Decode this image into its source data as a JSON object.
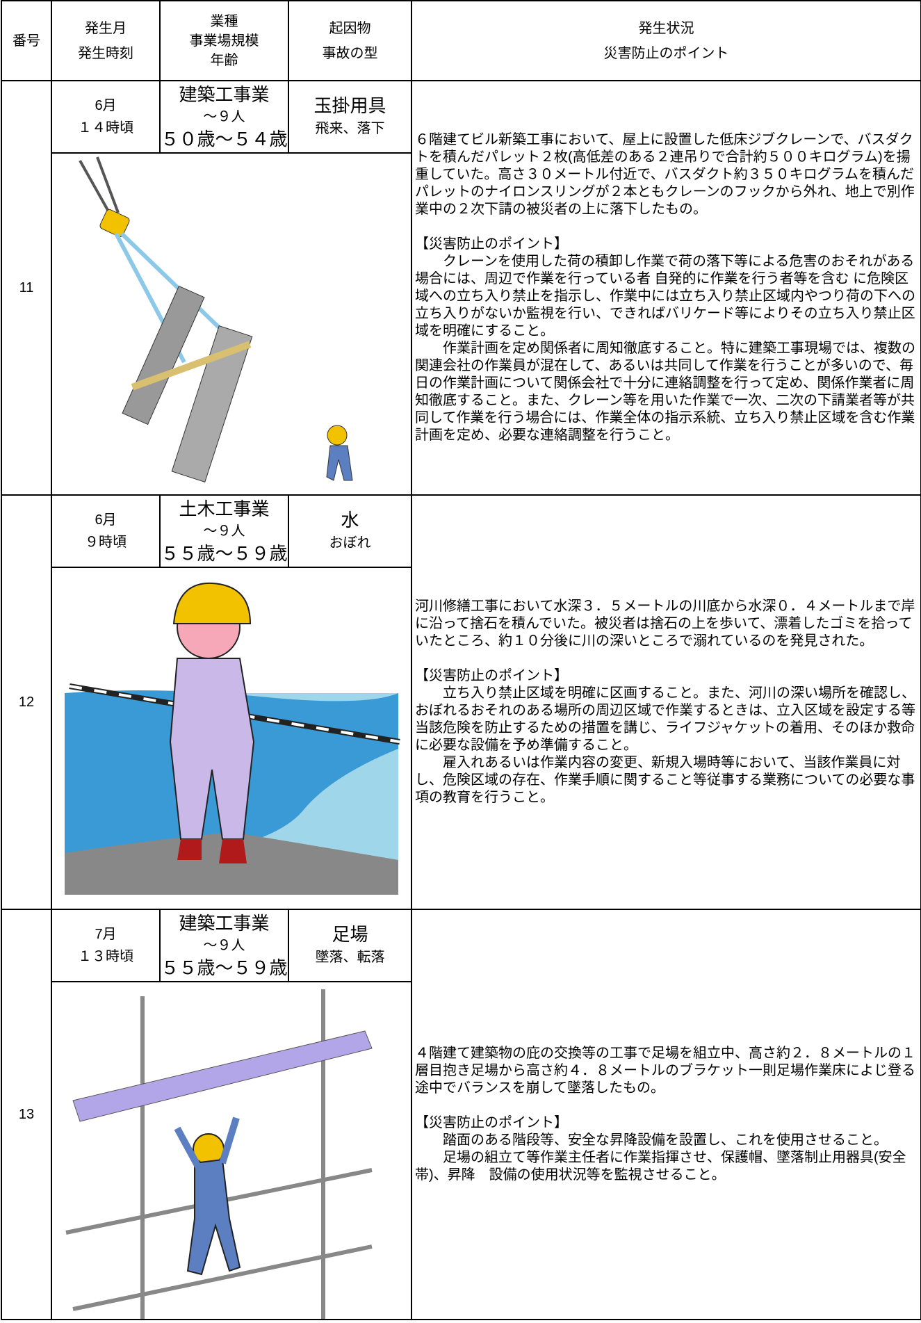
{
  "header": {
    "number": "番号",
    "month": "発生月",
    "time": "発生時刻",
    "industry": "業種",
    "scale": "事業場規模",
    "age": "年齢",
    "cause": "起因物",
    "accident_type": "事故の型",
    "situation": "発生状況",
    "prevention": "災害防止のポイント"
  },
  "rows": [
    {
      "number": "11",
      "month": "6月",
      "time": "１４時頃",
      "industry": "建築工事業",
      "scale": "～９人",
      "age": "５０歳～５４歳",
      "cause": "玉掛用具",
      "accident_type": "飛来、落下",
      "situation": "６階建てビル新築工事において、屋上に設置した低床ジブクレーンで、バスダクトを積んだパレット２枚(高低差のある２連吊りで合計約５００キログラム)を揚重していた。高さ３０メートル付近で、バスダクト約３５０キログラムを積んだパレットのナイロンスリングが２本ともクレーンのフックから外れ、地上で別作業中の２次下請の被災者の上に落下したもの。",
      "prevention_heading": "【災害防止のポイント】",
      "prevention": [
        "クレーンを使用した荷の積卸し作業で荷の落下等による危害のおそれがある場合には、周辺で作業を行っている者 自発的に作業を行う者等を含む に危険区域への立ち入り禁止を指示し、作業中には立ち入り禁止区域内やつり荷の下への立ち入りがないか監視を行い、できればバリケード等によりその立ち入り禁止区域を明確にすること。",
        "作業計画を定め関係者に周知徹底すること。特に建築工事現場では、複数の関連会社の作業員が混在して、あるいは共同して作業を行うことが多いので、毎日の作業計画について関係会社で十分に連絡調整を行って定め、関係作業者に周知徹底すること。また、クレーン等を用いた作業で一次、二次の下請業者等が共同して作業を行う場合には、作業全体の指示系統、立ち入り禁止区域を含む作業計画を定め、必要な連絡調整を行うこと。"
      ]
    },
    {
      "number": "12",
      "month": "6月",
      "time": "９時頃",
      "industry": "土木工事業",
      "scale": "～９人",
      "age": "５５歳～５９歳",
      "cause": "水",
      "accident_type": "おぼれ",
      "situation": "河川修繕工事において水深３．５メートルの川底から水深０．４メートルまで岸に沿って捨石を積んでいた。被災者は捨石の上を歩いて、漂着したゴミを拾っていたところ、約１０分後に川の深いところで溺れているのを発見された。",
      "prevention_heading": "【災害防止のポイント】",
      "prevention": [
        "立ち入り禁止区域を明確に区画すること。また、河川の深い場所を確認し、おぼれるおそれのある場所の周辺区域で作業するときは、立入区域を設定する等当該危険を防止するための措置を講じ、ライフジャケットの着用、そのほか救命に必要な設備を予め準備すること。",
        "雇入れあるいは作業内容の変更、新規入場時等において、当該作業員に対し、危険区域の存在、作業手順に関すること等従事する業務についての必要な事項の教育を行うこと。"
      ]
    },
    {
      "number": "13",
      "month": "7月",
      "time": "１３時頃",
      "industry": "建築工事業",
      "scale": "～９人",
      "age": "５５歳～５９歳",
      "cause": "足場",
      "accident_type": "墜落、転落",
      "situation": "４階建て建築物の庇の交換等の工事で足場を組立中、高さ約２．８メートルの１層目抱き足場から高さ約４．８メートルのブラケット一則足場作業床によじ登る途中でバランスを崩して墜落したもの。",
      "prevention_heading": "【災害防止のポイント】",
      "prevention": [
        "踏面のある階段等、安全な昇降設備を設置し、これを使用させること。",
        "足場の組立て等作業主任者に作業指揮させ、保護帽、墜落制止用器具(安全帯)、昇降　設備の使用状況等を監視させること。"
      ]
    }
  ]
}
